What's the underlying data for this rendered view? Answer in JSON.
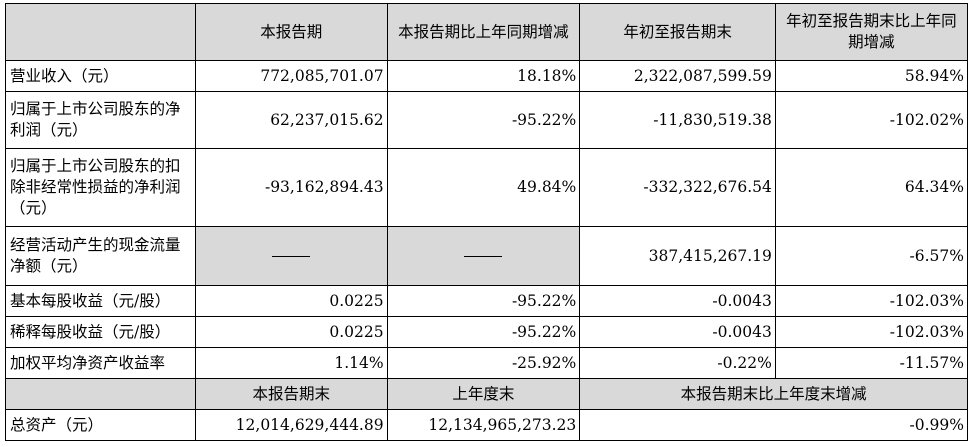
{
  "headers": {
    "current_period": "本报告期",
    "current_yoy": "本报告期比上年同期增减",
    "ytd": "年初至报告期末",
    "ytd_yoy": "年初至报告期末比上年同期增减"
  },
  "rows": [
    {
      "label": "营业收入（元）",
      "current": "772,085,701.07",
      "current_yoy": "18.18%",
      "ytd": "2,322,087,599.59",
      "ytd_yoy": "58.94%"
    },
    {
      "label": "归属于上市公司股东的净利润（元）",
      "current": "62,237,015.62",
      "current_yoy": "-95.22%",
      "ytd": "-11,830,519.38",
      "ytd_yoy": "-102.02%"
    },
    {
      "label": "归属于上市公司股东的扣除非经常性损益的净利润（元）",
      "current": "-93,162,894.43",
      "current_yoy": "49.84%",
      "ytd": "-332,322,676.54",
      "ytd_yoy": "64.34%"
    },
    {
      "label": "经营活动产生的现金流量净额（元）",
      "current": "——",
      "current_yoy": "——",
      "ytd": "387,415,267.19",
      "ytd_yoy": "-6.57%"
    },
    {
      "label": "基本每股收益（元/股）",
      "current": "0.0225",
      "current_yoy": "-95.22%",
      "ytd": "-0.0043",
      "ytd_yoy": "-102.03%"
    },
    {
      "label": "稀释每股收益（元/股）",
      "current": "0.0225",
      "current_yoy": "-95.22%",
      "ytd": "-0.0043",
      "ytd_yoy": "-102.03%"
    },
    {
      "label": "加权平均净资产收益率",
      "current": "1.14%",
      "current_yoy": "-25.92%",
      "ytd": "-0.22%",
      "ytd_yoy": "-11.57%"
    }
  ],
  "headers2": {
    "period_end": "本报告期末",
    "last_year_end": "上年度末",
    "change": "本报告期末比上年度末增减"
  },
  "total_assets": {
    "label": "总资产（元）",
    "period_end": "12,014,629,444.89",
    "last_year_end": "12,134,965,273.23",
    "change": "-0.99%"
  }
}
